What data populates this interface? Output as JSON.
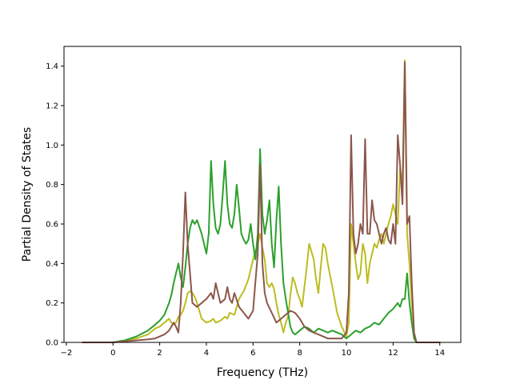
{
  "chart_data": {
    "type": "line",
    "title": "",
    "xlabel": "Frequency (THz)",
    "ylabel": "Partial Density of States",
    "xlim": [
      -2.1,
      14.9
    ],
    "ylim": [
      0.0,
      1.5
    ],
    "xticks": [
      -2,
      0,
      2,
      4,
      6,
      8,
      10,
      12,
      14
    ],
    "yticks": [
      0.0,
      0.2,
      0.4,
      0.6,
      0.8,
      1.0,
      1.2,
      1.4
    ],
    "xtick_labels": [
      "−2",
      "0",
      "2",
      "4",
      "6",
      "8",
      "10",
      "12",
      "14"
    ],
    "ytick_labels": [
      "0.0",
      "0.2",
      "0.4",
      "0.6",
      "0.8",
      "1.0",
      "1.2",
      "1.4"
    ],
    "grid": false,
    "legend": "none",
    "colors": {
      "olive": "#bcbd22",
      "purple": "#9467bd",
      "pink": "#e377c2",
      "orange": "#ff7f0e",
      "green": "#2ca02c",
      "brown": "#8c564b"
    },
    "series": [
      {
        "color": "#bcbd22",
        "x": [
          -1.3,
          0.0,
          0.5,
          1.0,
          1.5,
          1.8,
          2.0,
          2.2,
          2.4,
          2.5,
          2.6,
          2.7,
          2.8,
          2.9,
          3.0,
          3.1,
          3.2,
          3.3,
          3.4,
          3.5,
          3.6,
          3.8,
          4.0,
          4.2,
          4.3,
          4.4,
          4.6,
          4.8,
          4.9,
          5.0,
          5.2,
          5.4,
          5.5,
          5.6,
          5.8,
          6.0,
          6.2,
          6.3,
          6.4,
          6.5,
          6.6,
          6.7,
          6.8,
          6.9,
          7.0,
          7.1,
          7.2,
          7.3,
          7.4,
          7.5,
          7.6,
          7.7,
          7.8,
          7.9,
          8.0,
          8.1,
          8.2,
          8.3,
          8.4,
          8.5,
          8.6,
          8.7,
          8.8,
          8.9,
          9.0,
          9.1,
          9.2,
          9.4,
          9.6,
          9.8,
          10.0,
          10.1,
          10.2,
          10.3,
          10.4,
          10.5,
          10.6,
          10.7,
          10.8,
          10.9,
          11.0,
          11.1,
          11.2,
          11.3,
          11.4,
          11.5,
          11.6,
          11.7,
          11.8,
          11.9,
          12.0,
          12.1,
          12.2,
          12.3,
          12.4,
          12.5,
          12.6,
          12.7,
          12.8,
          12.9,
          13.0,
          14.0
        ],
        "values": [
          0.0,
          0.0,
          0.01,
          0.02,
          0.04,
          0.07,
          0.08,
          0.1,
          0.12,
          0.1,
          0.09,
          0.1,
          0.13,
          0.14,
          0.16,
          0.2,
          0.25,
          0.26,
          0.25,
          0.23,
          0.2,
          0.12,
          0.1,
          0.11,
          0.12,
          0.1,
          0.11,
          0.13,
          0.12,
          0.15,
          0.14,
          0.22,
          0.24,
          0.26,
          0.32,
          0.42,
          0.5,
          0.55,
          0.48,
          0.42,
          0.3,
          0.28,
          0.3,
          0.27,
          0.2,
          0.14,
          0.1,
          0.05,
          0.1,
          0.13,
          0.24,
          0.33,
          0.3,
          0.25,
          0.22,
          0.18,
          0.28,
          0.38,
          0.5,
          0.46,
          0.42,
          0.32,
          0.25,
          0.38,
          0.5,
          0.48,
          0.4,
          0.28,
          0.15,
          0.08,
          0.03,
          0.1,
          0.6,
          0.5,
          0.4,
          0.32,
          0.35,
          0.5,
          0.45,
          0.3,
          0.4,
          0.45,
          0.5,
          0.48,
          0.52,
          0.55,
          0.5,
          0.55,
          0.6,
          0.64,
          0.7,
          0.65,
          0.6,
          0.88,
          0.8,
          1.43,
          0.55,
          0.4,
          0.2,
          0.02,
          0.0,
          0.0
        ]
      },
      {
        "color": "#2ca02c",
        "x": [
          -1.3,
          0.0,
          0.5,
          1.0,
          1.5,
          1.8,
          2.0,
          2.2,
          2.4,
          2.5,
          2.6,
          2.7,
          2.8,
          2.9,
          3.0,
          3.1,
          3.2,
          3.3,
          3.4,
          3.5,
          3.6,
          3.8,
          4.0,
          4.1,
          4.2,
          4.3,
          4.4,
          4.5,
          4.6,
          4.7,
          4.8,
          4.9,
          5.0,
          5.1,
          5.2,
          5.3,
          5.4,
          5.5,
          5.6,
          5.7,
          5.8,
          5.9,
          6.0,
          6.1,
          6.2,
          6.3,
          6.4,
          6.5,
          6.6,
          6.7,
          6.8,
          6.9,
          7.0,
          7.1,
          7.2,
          7.3,
          7.4,
          7.5,
          7.6,
          7.7,
          7.8,
          8.0,
          8.2,
          8.4,
          8.6,
          8.8,
          9.0,
          9.2,
          9.4,
          9.6,
          9.8,
          10.0,
          10.2,
          10.4,
          10.6,
          10.8,
          11.0,
          11.2,
          11.4,
          11.6,
          11.8,
          12.0,
          12.2,
          12.3,
          12.4,
          12.5,
          12.6,
          12.7,
          12.8,
          12.9,
          13.0,
          14.0
        ],
        "values": [
          0.0,
          0.0,
          0.01,
          0.03,
          0.06,
          0.09,
          0.11,
          0.14,
          0.2,
          0.24,
          0.3,
          0.35,
          0.4,
          0.33,
          0.28,
          0.38,
          0.5,
          0.58,
          0.62,
          0.6,
          0.62,
          0.55,
          0.45,
          0.55,
          0.92,
          0.7,
          0.58,
          0.55,
          0.6,
          0.75,
          0.92,
          0.7,
          0.6,
          0.58,
          0.65,
          0.8,
          0.68,
          0.55,
          0.52,
          0.5,
          0.52,
          0.6,
          0.5,
          0.42,
          0.55,
          0.98,
          0.65,
          0.55,
          0.62,
          0.72,
          0.5,
          0.38,
          0.62,
          0.79,
          0.5,
          0.3,
          0.22,
          0.15,
          0.08,
          0.05,
          0.04,
          0.06,
          0.08,
          0.07,
          0.05,
          0.07,
          0.06,
          0.05,
          0.06,
          0.05,
          0.04,
          0.02,
          0.04,
          0.06,
          0.05,
          0.07,
          0.08,
          0.1,
          0.09,
          0.12,
          0.15,
          0.17,
          0.2,
          0.18,
          0.22,
          0.22,
          0.35,
          0.2,
          0.1,
          0.02,
          0.0,
          0.0
        ]
      },
      {
        "color": "#8c564b",
        "x": [
          -1.3,
          0.0,
          0.5,
          1.0,
          1.5,
          1.8,
          2.0,
          2.2,
          2.4,
          2.5,
          2.6,
          2.7,
          2.8,
          2.9,
          3.0,
          3.1,
          3.2,
          3.4,
          3.6,
          3.8,
          4.0,
          4.2,
          4.3,
          4.4,
          4.6,
          4.8,
          4.9,
          5.0,
          5.1,
          5.2,
          5.4,
          5.6,
          5.8,
          6.0,
          6.2,
          6.3,
          6.4,
          6.5,
          6.6,
          6.8,
          7.0,
          7.2,
          7.4,
          7.6,
          7.8,
          8.0,
          8.2,
          8.4,
          8.6,
          8.8,
          9.0,
          9.2,
          9.4,
          9.6,
          9.8,
          10.0,
          10.1,
          10.2,
          10.3,
          10.4,
          10.5,
          10.6,
          10.7,
          10.8,
          10.9,
          11.0,
          11.1,
          11.2,
          11.3,
          11.4,
          11.5,
          11.6,
          11.7,
          11.8,
          11.9,
          12.0,
          12.1,
          12.2,
          12.3,
          12.4,
          12.5,
          12.6,
          12.7,
          12.8,
          12.9,
          13.0,
          14.0
        ],
        "values": [
          0.0,
          0.0,
          0.005,
          0.01,
          0.015,
          0.02,
          0.03,
          0.04,
          0.06,
          0.08,
          0.1,
          0.08,
          0.05,
          0.2,
          0.45,
          0.76,
          0.5,
          0.2,
          0.18,
          0.2,
          0.22,
          0.25,
          0.22,
          0.3,
          0.2,
          0.22,
          0.28,
          0.22,
          0.2,
          0.25,
          0.18,
          0.15,
          0.12,
          0.16,
          0.45,
          0.9,
          0.4,
          0.25,
          0.2,
          0.15,
          0.1,
          0.12,
          0.14,
          0.16,
          0.15,
          0.12,
          0.08,
          0.06,
          0.05,
          0.04,
          0.03,
          0.02,
          0.02,
          0.02,
          0.02,
          0.05,
          0.25,
          1.05,
          0.55,
          0.45,
          0.5,
          0.6,
          0.55,
          1.03,
          0.55,
          0.55,
          0.72,
          0.62,
          0.6,
          0.55,
          0.5,
          0.55,
          0.58,
          0.52,
          0.5,
          0.6,
          0.5,
          1.05,
          0.9,
          0.7,
          1.42,
          0.6,
          0.64,
          0.3,
          0.05,
          0.0,
          0.0
        ]
      }
    ]
  }
}
